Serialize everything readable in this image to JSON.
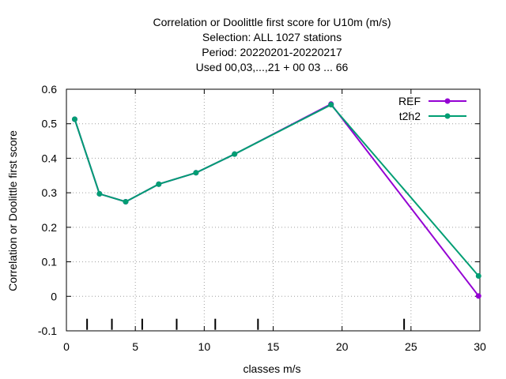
{
  "chart_data": {
    "type": "line",
    "title_lines": [
      "Correlation or Doolittle first score  for U10m (m/s)",
      "Selection: ALL   1027 stations",
      "Period: 20220201-20220217",
      "Used  00,03,...,21  + 00 03 ... 66"
    ],
    "xlabel": "classes m/s",
    "ylabel": "Correlation or Doolittle first score",
    "xlim": [
      0,
      30
    ],
    "ylim": [
      -0.1,
      0.6
    ],
    "xticks": [
      0,
      5,
      10,
      15,
      20,
      25,
      30
    ],
    "yticks": [
      -0.1,
      0,
      0.1,
      0.2,
      0.3,
      0.4,
      0.5,
      0.6
    ],
    "xtick_labels": [
      "0",
      "5",
      "10",
      "15",
      "20",
      "25",
      "30"
    ],
    "ytick_labels": [
      "-0.1",
      "0",
      "0.1",
      "0.2",
      "0.3",
      "0.4",
      "0.5",
      "0.6"
    ],
    "grid": true,
    "legend_position": "top-right",
    "class_boundaries": [
      1.5,
      3.3,
      5.5,
      8.0,
      10.8,
      13.9,
      24.5
    ],
    "series": [
      {
        "name": "REF",
        "color": "#9400d3",
        "x": [
          0.6,
          2.4,
          4.3,
          6.7,
          9.4,
          12.2,
          19.2,
          29.9
        ],
        "y": [
          0.513,
          0.297,
          0.274,
          0.325,
          0.358,
          0.412,
          0.557,
          0.001
        ]
      },
      {
        "name": "t2h2",
        "color": "#009e73",
        "x": [
          0.6,
          2.4,
          4.3,
          6.7,
          9.4,
          12.2,
          19.2,
          29.9
        ],
        "y": [
          0.513,
          0.297,
          0.274,
          0.325,
          0.358,
          0.412,
          0.555,
          0.059
        ]
      }
    ]
  }
}
